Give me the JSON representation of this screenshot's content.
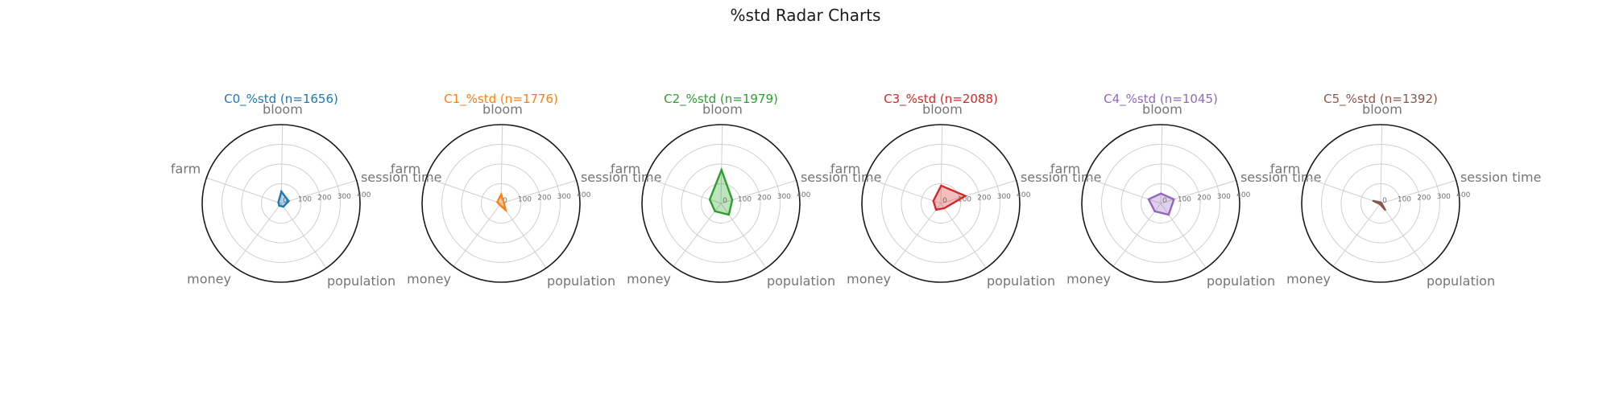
{
  "title": "%std Radar Charts",
  "chart_data": [
    {
      "type": "radar",
      "title": "C0_%std (n=1656)",
      "color": "#1f77b4",
      "axes": [
        "session time",
        "bloom",
        "farm",
        "money",
        "population"
      ],
      "values": [
        40,
        60,
        15,
        15,
        20
      ],
      "rlim": [
        0,
        400
      ],
      "rticks": [
        "0",
        "100",
        "200",
        "300",
        "400"
      ],
      "grid": true
    },
    {
      "type": "radar",
      "title": "C1_%std (n=1776)",
      "color": "#ff7f0e",
      "axes": [
        "session time",
        "bloom",
        "farm",
        "money",
        "population"
      ],
      "values": [
        15,
        45,
        20,
        10,
        40
      ],
      "rlim": [
        0,
        400
      ],
      "rticks": [
        "0",
        "100",
        "200",
        "300",
        "400"
      ],
      "grid": true
    },
    {
      "type": "radar",
      "title": "C2_%std (n=1979)",
      "color": "#2ca02c",
      "axes": [
        "session time",
        "bloom",
        "farm",
        "money",
        "population"
      ],
      "values": [
        60,
        170,
        60,
        50,
        70
      ],
      "rlim": [
        0,
        400
      ],
      "rticks": [
        "0",
        "100",
        "200",
        "300",
        "400"
      ],
      "grid": true
    },
    {
      "type": "radar",
      "title": "C3_%std (n=2088)",
      "color": "#d62728",
      "axes": [
        "session time",
        "bloom",
        "farm",
        "money",
        "population"
      ],
      "values": [
        130,
        90,
        40,
        40,
        30
      ],
      "rlim": [
        0,
        400
      ],
      "rticks": [
        "0",
        "100",
        "200",
        "300",
        "400"
      ],
      "grid": true
    },
    {
      "type": "radar",
      "title": "C4_%std (n=1045)",
      "color": "#9467bd",
      "axes": [
        "session time",
        "bloom",
        "farm",
        "money",
        "population"
      ],
      "values": [
        70,
        50,
        65,
        50,
        70
      ],
      "rlim": [
        0,
        400
      ],
      "rticks": [
        "0",
        "100",
        "200",
        "300",
        "400"
      ],
      "grid": true
    },
    {
      "type": "radar",
      "title": "C5_%std (n=1392)",
      "color": "#8c564b",
      "axes": [
        "session time",
        "bloom",
        "farm",
        "money",
        "population"
      ],
      "values": [
        5,
        5,
        40,
        5,
        40
      ],
      "rlim": [
        0,
        400
      ],
      "rticks": [
        "0",
        "100",
        "200",
        "300",
        "400"
      ],
      "grid": true
    }
  ]
}
